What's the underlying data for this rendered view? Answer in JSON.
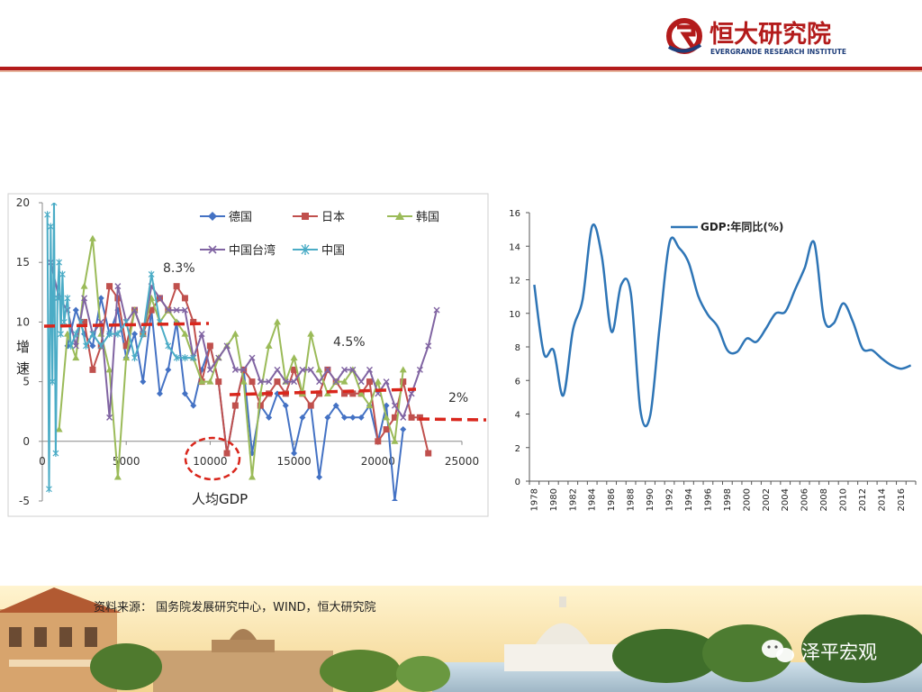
{
  "header": {
    "logo_cn": "恒大研究院",
    "logo_en": "EVERGRANDE RESEARCH INSTITUTE",
    "brand_color": "#b31b1b"
  },
  "footer": {
    "source": "资料来源：  国务院发展研究中心，WIND，恒大研究院",
    "watermark": "泽平宏观"
  },
  "left_chart": {
    "legend": [
      "德国",
      "日本",
      "韩国",
      "中国台湾",
      "中国"
    ],
    "colors": {
      "德国": "#4472c4",
      "日本": "#c0504d",
      "韩国": "#9bbb59",
      "中国台湾": "#8064a2",
      "中国": "#4bacc6"
    },
    "annotations": {
      "first": "8.3%",
      "second": "4.5%",
      "third": "2%",
      "circle_label": "人均GDP"
    },
    "ylabel": "增\n速"
  },
  "right_chart": {
    "legend": "GDP:年同比(%)",
    "color": "#2e75b6"
  },
  "chart_data": [
    {
      "type": "line",
      "xlabel": "人均GDP",
      "ylabel": "增速",
      "xlim": [
        0,
        25000
      ],
      "ylim": [
        -5,
        20
      ],
      "x_ticks": [
        0,
        5000,
        10000,
        15000,
        20000,
        25000
      ],
      "y_ticks": [
        -5,
        0,
        5,
        10,
        15,
        20
      ],
      "legend_position": "top",
      "grid": false,
      "series": [
        {
          "name": "德国",
          "points": [
            [
              1500,
              8
            ],
            [
              2000,
              11
            ],
            [
              2500,
              9
            ],
            [
              3000,
              8
            ],
            [
              3500,
              12
            ],
            [
              4000,
              9
            ],
            [
              4500,
              11
            ],
            [
              5000,
              7
            ],
            [
              5500,
              9
            ],
            [
              6000,
              5
            ],
            [
              6500,
              11
            ],
            [
              7000,
              4
            ],
            [
              7500,
              6
            ],
            [
              8000,
              10
            ],
            [
              8500,
              4
            ],
            [
              9000,
              3
            ],
            [
              9500,
              6
            ],
            [
              10000,
              8
            ],
            [
              10500,
              5
            ],
            [
              11000,
              -1
            ],
            [
              11500,
              3
            ],
            [
              12000,
              6
            ],
            [
              12500,
              -1
            ],
            [
              13000,
              3
            ],
            [
              13500,
              2
            ],
            [
              14000,
              4
            ],
            [
              14500,
              3
            ],
            [
              15000,
              -1
            ],
            [
              15500,
              2
            ],
            [
              16000,
              3
            ],
            [
              16500,
              -3
            ],
            [
              17000,
              2
            ],
            [
              17500,
              3
            ],
            [
              18000,
              2
            ],
            [
              18500,
              2
            ],
            [
              19000,
              2
            ],
            [
              19500,
              3
            ],
            [
              20000,
              0
            ],
            [
              20500,
              3
            ],
            [
              21000,
              -5
            ],
            [
              21500,
              1
            ]
          ]
        },
        {
          "name": "日本",
          "points": [
            [
              2500,
              10
            ],
            [
              3000,
              6
            ],
            [
              3500,
              8
            ],
            [
              4000,
              13
            ],
            [
              4500,
              12
            ],
            [
              5000,
              8
            ],
            [
              5500,
              11
            ],
            [
              6000,
              9
            ],
            [
              6500,
              11
            ],
            [
              7000,
              12
            ],
            [
              7500,
              11
            ],
            [
              8000,
              13
            ],
            [
              8500,
              12
            ],
            [
              9000,
              10
            ],
            [
              9500,
              5
            ],
            [
              10000,
              8
            ],
            [
              10500,
              5
            ],
            [
              11000,
              -1
            ],
            [
              11500,
              3
            ],
            [
              12000,
              6
            ],
            [
              12500,
              5
            ],
            [
              13000,
              3
            ],
            [
              13500,
              4
            ],
            [
              14000,
              5
            ],
            [
              14500,
              4
            ],
            [
              15000,
              6
            ],
            [
              15500,
              4
            ],
            [
              16000,
              3
            ],
            [
              16500,
              4
            ],
            [
              17000,
              6
            ],
            [
              17500,
              5
            ],
            [
              18000,
              4
            ],
            [
              18500,
              4
            ],
            [
              19000,
              4
            ],
            [
              19500,
              5
            ],
            [
              20000,
              0
            ],
            [
              20500,
              1
            ],
            [
              21000,
              2
            ],
            [
              21500,
              5
            ],
            [
              22000,
              2
            ],
            [
              22500,
              2
            ],
            [
              23000,
              -1
            ]
          ]
        },
        {
          "name": "韩国",
          "points": [
            [
              1000,
              1
            ],
            [
              1500,
              9
            ],
            [
              2000,
              7
            ],
            [
              2500,
              13
            ],
            [
              3000,
              17
            ],
            [
              3500,
              9
            ],
            [
              4000,
              6
            ],
            [
              4500,
              -3
            ],
            [
              5000,
              7
            ],
            [
              5500,
              11
            ],
            [
              6000,
              9
            ],
            [
              6500,
              12
            ],
            [
              7000,
              10
            ],
            [
              7500,
              11
            ],
            [
              8000,
              10
            ],
            [
              8500,
              9
            ],
            [
              9000,
              7
            ],
            [
              9500,
              5
            ],
            [
              10000,
              5
            ],
            [
              10500,
              7
            ],
            [
              11000,
              8
            ],
            [
              11500,
              9
            ],
            [
              12000,
              5
            ],
            [
              12500,
              -3
            ],
            [
              13000,
              4
            ],
            [
              13500,
              8
            ],
            [
              14000,
              10
            ],
            [
              14500,
              5
            ],
            [
              15000,
              7
            ],
            [
              15500,
              4
            ],
            [
              16000,
              9
            ],
            [
              16500,
              6
            ],
            [
              17000,
              4
            ],
            [
              17500,
              5
            ],
            [
              18000,
              5
            ],
            [
              18500,
              6
            ],
            [
              19000,
              4
            ],
            [
              19500,
              3
            ],
            [
              20000,
              5
            ],
            [
              20500,
              2
            ],
            [
              21000,
              0
            ],
            [
              21500,
              6
            ]
          ]
        },
        {
          "name": "中国台湾",
          "points": [
            [
              500,
              15
            ],
            [
              1000,
              12
            ],
            [
              1500,
              11
            ],
            [
              2000,
              8
            ],
            [
              2500,
              12
            ],
            [
              3000,
              9
            ],
            [
              3500,
              10
            ],
            [
              4000,
              2
            ],
            [
              4500,
              13
            ],
            [
              5000,
              10
            ],
            [
              5500,
              11
            ],
            [
              6000,
              9
            ],
            [
              6500,
              13
            ],
            [
              7000,
              12
            ],
            [
              7500,
              11
            ],
            [
              8000,
              11
            ],
            [
              8500,
              11
            ],
            [
              9000,
              7
            ],
            [
              9500,
              9
            ],
            [
              10000,
              6
            ],
            [
              10500,
              7
            ],
            [
              11000,
              8
            ],
            [
              11500,
              6
            ],
            [
              12000,
              6
            ],
            [
              12500,
              7
            ],
            [
              13000,
              5
            ],
            [
              13500,
              5
            ],
            [
              14000,
              6
            ],
            [
              14500,
              5
            ],
            [
              15000,
              5
            ],
            [
              15500,
              6
            ],
            [
              16000,
              6
            ],
            [
              16500,
              5
            ],
            [
              17000,
              6
            ],
            [
              17500,
              5
            ],
            [
              18000,
              6
            ],
            [
              18500,
              6
            ],
            [
              19000,
              5
            ],
            [
              19500,
              6
            ],
            [
              20000,
              4
            ],
            [
              20500,
              5
            ],
            [
              21000,
              3
            ],
            [
              21500,
              2
            ],
            [
              22000,
              4
            ],
            [
              22500,
              6
            ],
            [
              23000,
              8
            ],
            [
              23500,
              11
            ]
          ]
        },
        {
          "name": "中国",
          "points": [
            [
              300,
              19
            ],
            [
              400,
              -4
            ],
            [
              500,
              18
            ],
            [
              600,
              5
            ],
            [
              700,
              20
            ],
            [
              800,
              -1
            ],
            [
              900,
              12
            ],
            [
              1000,
              15
            ],
            [
              1100,
              9
            ],
            [
              1200,
              14
            ],
            [
              1300,
              10
            ],
            [
              1500,
              12
            ],
            [
              1700,
              8
            ],
            [
              2000,
              9
            ],
            [
              2300,
              10
            ],
            [
              2600,
              8
            ],
            [
              3000,
              9
            ],
            [
              3500,
              8
            ],
            [
              4000,
              9
            ],
            [
              4500,
              9
            ],
            [
              5000,
              10
            ],
            [
              5500,
              7
            ],
            [
              6000,
              9
            ],
            [
              6500,
              14
            ],
            [
              7000,
              10
            ],
            [
              7500,
              8
            ],
            [
              8000,
              7
            ],
            [
              8500,
              7
            ],
            [
              9000,
              7
            ]
          ]
        }
      ]
    },
    {
      "type": "line",
      "title": "",
      "legend": "GDP:年同比(%)",
      "ylim": [
        0,
        16
      ],
      "y_ticks": [
        0,
        2,
        4,
        6,
        8,
        10,
        12,
        14,
        16
      ],
      "x_tick_labels": [
        "1978",
        "1980",
        "1982",
        "1984",
        "1986",
        "1988",
        "1990",
        "1992",
        "1994",
        "1996",
        "1998",
        "2000",
        "2002",
        "2004",
        "2006",
        "2008",
        "2010",
        "2012",
        "2014",
        "2016"
      ],
      "categories": [
        "1978",
        "1979",
        "1980",
        "1981",
        "1982",
        "1983",
        "1984",
        "1985",
        "1986",
        "1987",
        "1988",
        "1989",
        "1990",
        "1991",
        "1992",
        "1993",
        "1994",
        "1995",
        "1996",
        "1997",
        "1998",
        "1999",
        "2000",
        "2001",
        "2002",
        "2003",
        "2004",
        "2005",
        "2006",
        "2007",
        "2008",
        "2009",
        "2010",
        "2011",
        "2012",
        "2013",
        "2014",
        "2015",
        "2016",
        "2017"
      ],
      "values": [
        11.7,
        7.6,
        7.8,
        5.1,
        9.0,
        10.8,
        15.2,
        13.4,
        8.9,
        11.7,
        11.2,
        4.2,
        3.9,
        9.3,
        14.2,
        13.9,
        13.0,
        11.0,
        9.9,
        9.2,
        7.8,
        7.7,
        8.5,
        8.3,
        9.1,
        10.0,
        10.1,
        11.4,
        12.7,
        14.2,
        9.7,
        9.4,
        10.6,
        9.5,
        7.9,
        7.8,
        7.3,
        6.9,
        6.7,
        6.9
      ],
      "grid": false,
      "legend_position": "top-left"
    }
  ]
}
